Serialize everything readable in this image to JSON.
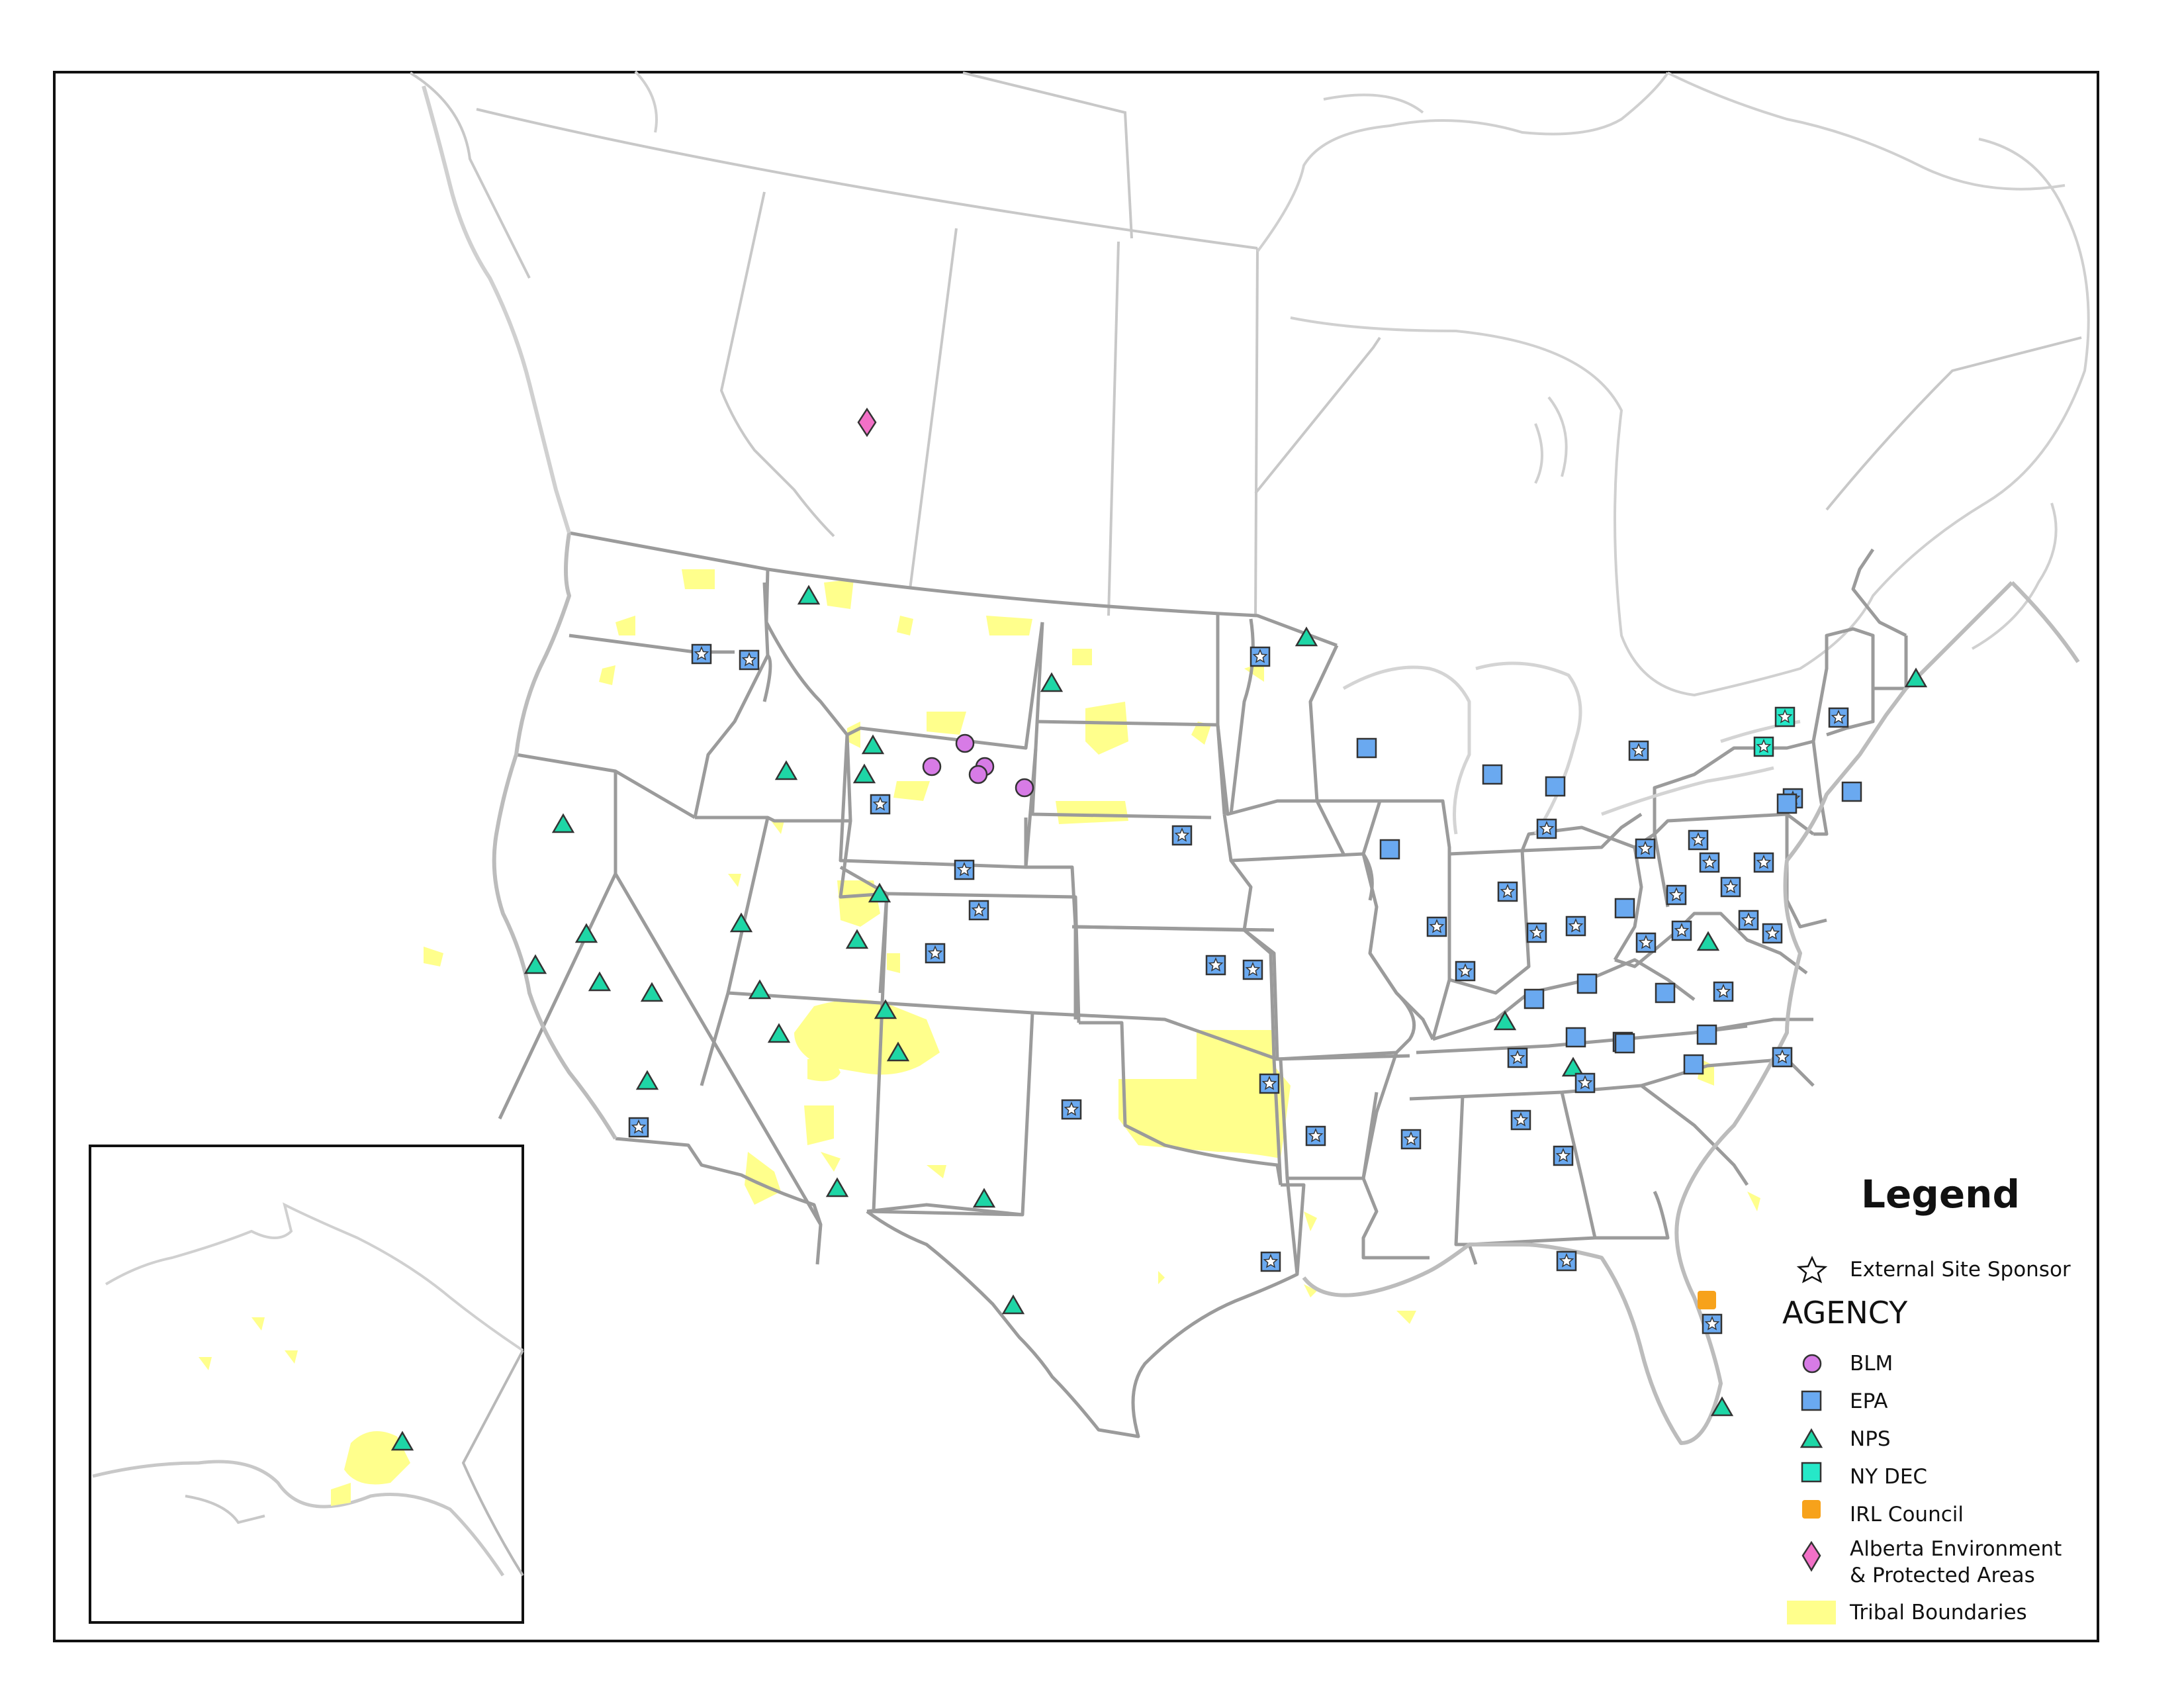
{
  "legend": {
    "title": "Legend",
    "external_sponsor_label": "External Site Sponsor",
    "agency_header": "AGENCY",
    "items": [
      {
        "key": "BLM",
        "label": "BLM",
        "symbol": "circle",
        "color": "#d77be6"
      },
      {
        "key": "EPA",
        "label": "EPA",
        "symbol": "square",
        "color": "#6aa9f0"
      },
      {
        "key": "NPS",
        "label": "NPS",
        "symbol": "triangle",
        "color": "#1ed6a6"
      },
      {
        "key": "NYDEC",
        "label": "NY DEC",
        "symbol": "square",
        "color": "#26e8c8"
      },
      {
        "key": "IRL",
        "label": "IRL Council",
        "symbol": "square",
        "color": "#f7a21b"
      },
      {
        "key": "ALB",
        "label": "Alberta Environment & Protected Areas",
        "symbol": "diamond",
        "color": "#f270c7"
      },
      {
        "key": "TRIBAL",
        "label": "Tribal Boundaries",
        "symbol": "fill",
        "color": "#ffff8c"
      }
    ]
  },
  "colors": {
    "boundary": "#9b9b9b",
    "canada_boundary": "#c8c8c8",
    "coast": "#bcbcbc",
    "tribal_fill": "#ffff8c",
    "frame": "#111111"
  }
}
